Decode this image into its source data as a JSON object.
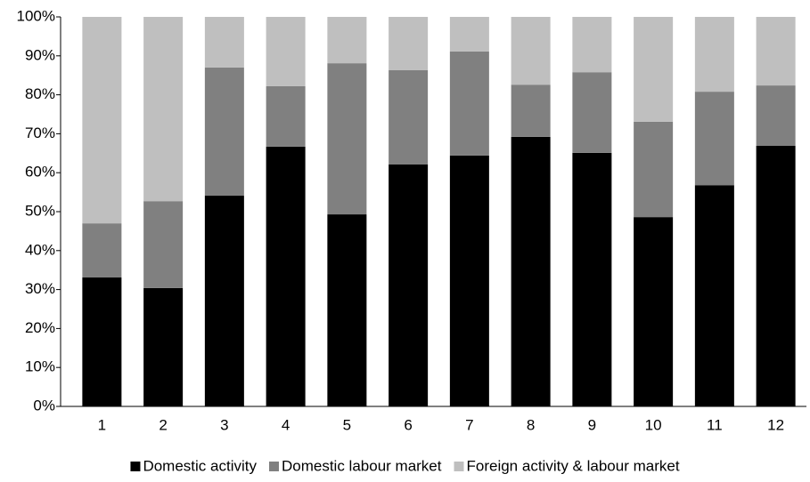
{
  "chart_data": {
    "type": "stacked_bar",
    "categories": [
      "1",
      "2",
      "3",
      "4",
      "5",
      "6",
      "7",
      "8",
      "9",
      "10",
      "11",
      "12"
    ],
    "series": [
      {
        "name": "Domestic activity",
        "color": "#000000",
        "values": [
          33.1,
          30.4,
          54.1,
          66.7,
          49.3,
          62.1,
          64.4,
          69.2,
          65.1,
          48.6,
          56.8,
          66.9
        ]
      },
      {
        "name": "Domestic labour market",
        "color": "#808080",
        "values": [
          13.9,
          22.3,
          32.9,
          15.5,
          38.8,
          24.2,
          26.7,
          13.4,
          20.7,
          24.5,
          24.0,
          15.5
        ]
      },
      {
        "name": "Foreign activity & labour market",
        "color": "#bfbfbf",
        "values": [
          53.0,
          47.3,
          13.0,
          17.8,
          11.9,
          13.7,
          8.9,
          17.4,
          14.2,
          26.9,
          19.2,
          17.6
        ]
      }
    ],
    "ylim": [
      0,
      100
    ],
    "yticks": [
      {
        "value": 0,
        "label": "0%"
      },
      {
        "value": 10,
        "label": "10%"
      },
      {
        "value": 20,
        "label": "20%"
      },
      {
        "value": 30,
        "label": "30%"
      },
      {
        "value": 40,
        "label": "40%"
      },
      {
        "value": 50,
        "label": "50%"
      },
      {
        "value": 60,
        "label": "60%"
      },
      {
        "value": 70,
        "label": "70%"
      },
      {
        "value": 80,
        "label": "80%"
      },
      {
        "value": 90,
        "label": "90%"
      },
      {
        "value": 100,
        "label": "100%"
      }
    ],
    "legend": "bottom"
  }
}
